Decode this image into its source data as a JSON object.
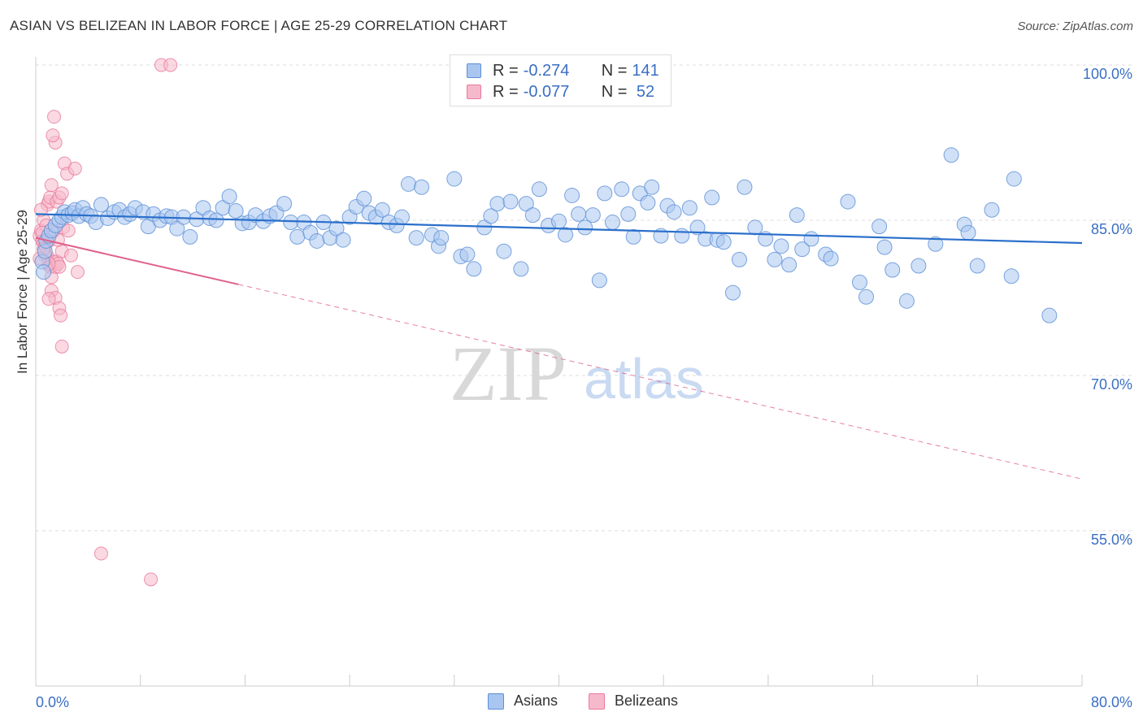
{
  "title": "ASIAN VS BELIZEAN IN LABOR FORCE | AGE 25-29 CORRELATION CHART",
  "source": "Source: ZipAtlas.com",
  "watermark": {
    "zip": "ZIP",
    "atlas": "atlas"
  },
  "colors": {
    "asian_fill": "#a9c6f0",
    "asian_stroke": "#5b8fd6",
    "asian_line": "#2a6fcb",
    "belizean_fill": "#f6b9cb",
    "belizean_stroke": "#e8799c",
    "belizean_line": "#e0608a",
    "axis_text": "#3a6fc4",
    "grid": "#dddddd"
  },
  "legend": {
    "rows": [
      {
        "r_label": "R =",
        "r_value": "-0.274",
        "n_label": "N =",
        "n_value": "141"
      },
      {
        "r_label": "R =",
        "r_value": "-0.077",
        "n_label": "N =",
        "n_value": " 52"
      }
    ]
  },
  "bottom_legend": {
    "asians": "Asians",
    "belizeans": "Belizeans"
  },
  "chart_data": {
    "type": "scatter",
    "title": "ASIAN VS BELIZEAN IN LABOR FORCE | AGE 25-29 CORRELATION CHART",
    "xlabel": "",
    "ylabel": "In Labor Force | Age 25-29",
    "xlim": [
      0,
      80
    ],
    "ylim": [
      40,
      102
    ],
    "x_tick_labels": [
      "0.0%",
      "80.0%"
    ],
    "y_ticks": [
      55,
      70,
      85,
      100
    ],
    "y_tick_labels": [
      "55.0%",
      "70.0%",
      "85.0%",
      "100.0%"
    ],
    "grid": true,
    "series": [
      {
        "name": "Asians",
        "R": -0.274,
        "N": 141,
        "trend": {
          "x0": 0,
          "y0": 85.6,
          "x1": 80,
          "y1": 82.8
        },
        "points": [
          [
            0.5,
            81
          ],
          [
            0.6,
            80
          ],
          [
            0.7,
            82
          ],
          [
            0.8,
            83
          ],
          [
            1,
            83.5
          ],
          [
            1.2,
            84
          ],
          [
            1.5,
            84.5
          ],
          [
            1.8,
            85
          ],
          [
            2,
            85.3
          ],
          [
            2.2,
            85.8
          ],
          [
            2.5,
            85.5
          ],
          [
            2.8,
            85.7
          ],
          [
            3,
            86
          ],
          [
            3.3,
            85.4
          ],
          [
            3.6,
            86.2
          ],
          [
            3.9,
            85.6
          ],
          [
            4.2,
            85.4
          ],
          [
            4.6,
            84.8
          ],
          [
            5,
            86.5
          ],
          [
            5.5,
            85.2
          ],
          [
            6,
            85.8
          ],
          [
            6.4,
            86
          ],
          [
            6.8,
            85.3
          ],
          [
            7.2,
            85.6
          ],
          [
            7.6,
            86.2
          ],
          [
            8.2,
            85.8
          ],
          [
            8.6,
            84.4
          ],
          [
            9,
            85.6
          ],
          [
            9.5,
            85
          ],
          [
            10,
            85.4
          ],
          [
            10.4,
            85.3
          ],
          [
            10.8,
            84.2
          ],
          [
            11.3,
            85.3
          ],
          [
            11.8,
            83.4
          ],
          [
            12.3,
            85.1
          ],
          [
            12.8,
            86.2
          ],
          [
            13.3,
            85.2
          ],
          [
            13.8,
            85
          ],
          [
            14.3,
            86.2
          ],
          [
            14.8,
            87.3
          ],
          [
            15.3,
            85.9
          ],
          [
            15.8,
            84.7
          ],
          [
            16.3,
            84.8
          ],
          [
            16.8,
            85.5
          ],
          [
            17.4,
            84.9
          ],
          [
            17.9,
            85.4
          ],
          [
            18.4,
            85.7
          ],
          [
            19,
            86.6
          ],
          [
            19.5,
            84.8
          ],
          [
            20,
            83.4
          ],
          [
            20.5,
            84.8
          ],
          [
            21,
            83.8
          ],
          [
            21.5,
            83
          ],
          [
            22,
            84.8
          ],
          [
            22.5,
            83.3
          ],
          [
            23,
            84.2
          ],
          [
            23.5,
            83.1
          ],
          [
            24,
            85.3
          ],
          [
            24.5,
            86.3
          ],
          [
            25.1,
            87.1
          ],
          [
            25.5,
            85.7
          ],
          [
            26,
            85.3
          ],
          [
            26.5,
            86
          ],
          [
            27,
            84.8
          ],
          [
            27.6,
            84.5
          ],
          [
            28,
            85.3
          ],
          [
            28.5,
            88.5
          ],
          [
            29.1,
            83.3
          ],
          [
            29.5,
            88.2
          ],
          [
            30.3,
            83.6
          ],
          [
            30.8,
            82.5
          ],
          [
            31,
            83.3
          ],
          [
            32,
            89
          ],
          [
            32.5,
            81.5
          ],
          [
            33,
            81.7
          ],
          [
            33.5,
            80.3
          ],
          [
            34.3,
            84.3
          ],
          [
            34.8,
            85.4
          ],
          [
            35.3,
            86.6
          ],
          [
            35.8,
            82
          ],
          [
            36.3,
            86.8
          ],
          [
            37.1,
            80.3
          ],
          [
            37.5,
            86.6
          ],
          [
            38,
            85.5
          ],
          [
            38.5,
            88
          ],
          [
            39.2,
            84.5
          ],
          [
            40,
            84.9
          ],
          [
            40.5,
            83.6
          ],
          [
            41,
            87.4
          ],
          [
            41.5,
            85.6
          ],
          [
            42,
            84.3
          ],
          [
            42.6,
            85.5
          ],
          [
            43.1,
            79.2
          ],
          [
            43.5,
            87.6
          ],
          [
            44.1,
            84.8
          ],
          [
            44.8,
            88
          ],
          [
            45.3,
            85.6
          ],
          [
            45.7,
            83.4
          ],
          [
            46.2,
            87.6
          ],
          [
            46.8,
            86.7
          ],
          [
            47.1,
            88.2
          ],
          [
            47.8,
            83.5
          ],
          [
            48.3,
            86.4
          ],
          [
            48.8,
            85.8
          ],
          [
            49.4,
            83.5
          ],
          [
            50,
            86.2
          ],
          [
            50.6,
            84.3
          ],
          [
            51.2,
            83.2
          ],
          [
            51.7,
            87.2
          ],
          [
            52.1,
            83.1
          ],
          [
            52.6,
            82.9
          ],
          [
            53.3,
            78
          ],
          [
            53.8,
            81.2
          ],
          [
            54.2,
            88.2
          ],
          [
            55,
            84.3
          ],
          [
            55.8,
            83.2
          ],
          [
            56.5,
            81.2
          ],
          [
            57,
            82.5
          ],
          [
            57.6,
            80.7
          ],
          [
            58.2,
            85.5
          ],
          [
            58.6,
            82.2
          ],
          [
            59.3,
            83.2
          ],
          [
            60.4,
            81.7
          ],
          [
            60.8,
            81.3
          ],
          [
            62.1,
            86.8
          ],
          [
            63,
            79
          ],
          [
            63.5,
            77.6
          ],
          [
            64.5,
            84.4
          ],
          [
            64.9,
            82.4
          ],
          [
            65.5,
            80.2
          ],
          [
            66.6,
            77.2
          ],
          [
            67.5,
            80.6
          ],
          [
            68.8,
            82.7
          ],
          [
            70,
            91.3
          ],
          [
            71,
            84.6
          ],
          [
            71.3,
            83.8
          ],
          [
            72,
            80.6
          ],
          [
            73.1,
            86
          ],
          [
            74.6,
            79.6
          ],
          [
            74.8,
            89
          ],
          [
            77.5,
            75.8
          ]
        ]
      },
      {
        "name": "Belizeans",
        "R": -0.077,
        "N": 52,
        "trend_solid": {
          "x0": 0,
          "y0": 83.3,
          "x1": 15.5,
          "y1": 78.8
        },
        "trend_dashed": {
          "x0": 15.5,
          "y0": 78.8,
          "x1": 80,
          "y1": 60
        },
        "points": [
          [
            0.3,
            83.5
          ],
          [
            0.4,
            84
          ],
          [
            0.5,
            83
          ],
          [
            0.6,
            85
          ],
          [
            0.7,
            82.5
          ],
          [
            0.8,
            84.5
          ],
          [
            0.9,
            81.5
          ],
          [
            1,
            83
          ],
          [
            1.1,
            80.5
          ],
          [
            1.2,
            79.5
          ],
          [
            1.3,
            81
          ],
          [
            1.4,
            84
          ],
          [
            1.5,
            80.5
          ],
          [
            1.6,
            81
          ],
          [
            1.7,
            80.8
          ],
          [
            1.8,
            80.5
          ],
          [
            2,
            82
          ],
          [
            0.5,
            83.8
          ],
          [
            0.6,
            82.8
          ],
          [
            0.7,
            81.6
          ],
          [
            0.9,
            86.5
          ],
          [
            1,
            86.8
          ],
          [
            1.1,
            87.2
          ],
          [
            1.2,
            88.4
          ],
          [
            1.4,
            95
          ],
          [
            1.5,
            92.5
          ],
          [
            1.3,
            93.2
          ],
          [
            1.6,
            86.8
          ],
          [
            1.8,
            87.2
          ],
          [
            2,
            87.6
          ],
          [
            2.2,
            90.5
          ],
          [
            2.4,
            89.5
          ],
          [
            1.2,
            78.2
          ],
          [
            1.5,
            77.5
          ],
          [
            1,
            77.4
          ],
          [
            1.8,
            76.5
          ],
          [
            1.9,
            75.8
          ],
          [
            2,
            72.8
          ],
          [
            2.1,
            84.3
          ],
          [
            2.5,
            84
          ],
          [
            2.7,
            81.6
          ],
          [
            3,
            90
          ],
          [
            3.2,
            80
          ],
          [
            5,
            52.8
          ],
          [
            8.8,
            50.3
          ],
          [
            9.6,
            100
          ],
          [
            10.3,
            100
          ],
          [
            0.4,
            86
          ],
          [
            0.6,
            82.2
          ],
          [
            1,
            80.8
          ],
          [
            1.7,
            83.1
          ],
          [
            0.3,
            81.3
          ]
        ]
      }
    ]
  }
}
